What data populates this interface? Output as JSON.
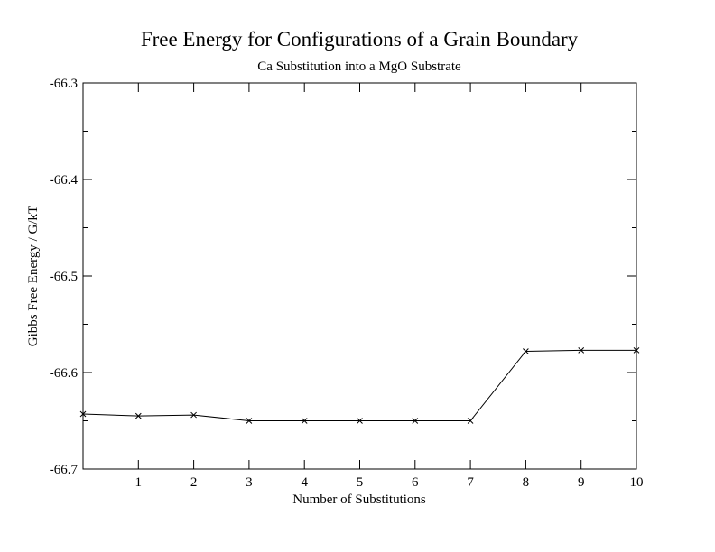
{
  "chart_data": {
    "type": "line",
    "title": "Free Energy for Configurations of a Grain Boundary",
    "subtitle": "Ca Substitution into a MgO Substrate",
    "xlabel": "Number of Substitutions",
    "ylabel": "Gibbs Free Energy / G/kT",
    "xlim": [
      0,
      10
    ],
    "ylim": [
      -66.7,
      -66.3
    ],
    "xticks": [
      1,
      2,
      3,
      4,
      5,
      6,
      7,
      8,
      9,
      10
    ],
    "xtick_labels": [
      "1",
      "2",
      "3",
      "4",
      "5",
      "6",
      "7",
      "8",
      "9",
      "10"
    ],
    "yticks": [
      -66.3,
      -66.4,
      -66.5,
      -66.6,
      -66.7
    ],
    "ytick_labels": [
      "-66.3",
      "-66.4",
      "-66.5",
      "-66.6",
      "-66.7"
    ],
    "y_minor_step": 0.05,
    "grid": false,
    "marker": "x",
    "color": "#000000",
    "x": [
      0,
      1,
      2,
      3,
      4,
      5,
      6,
      7,
      8,
      9,
      10
    ],
    "y": [
      -66.643,
      -66.645,
      -66.644,
      -66.65,
      -66.65,
      -66.65,
      -66.65,
      -66.65,
      -66.578,
      -66.577,
      -66.577
    ]
  }
}
